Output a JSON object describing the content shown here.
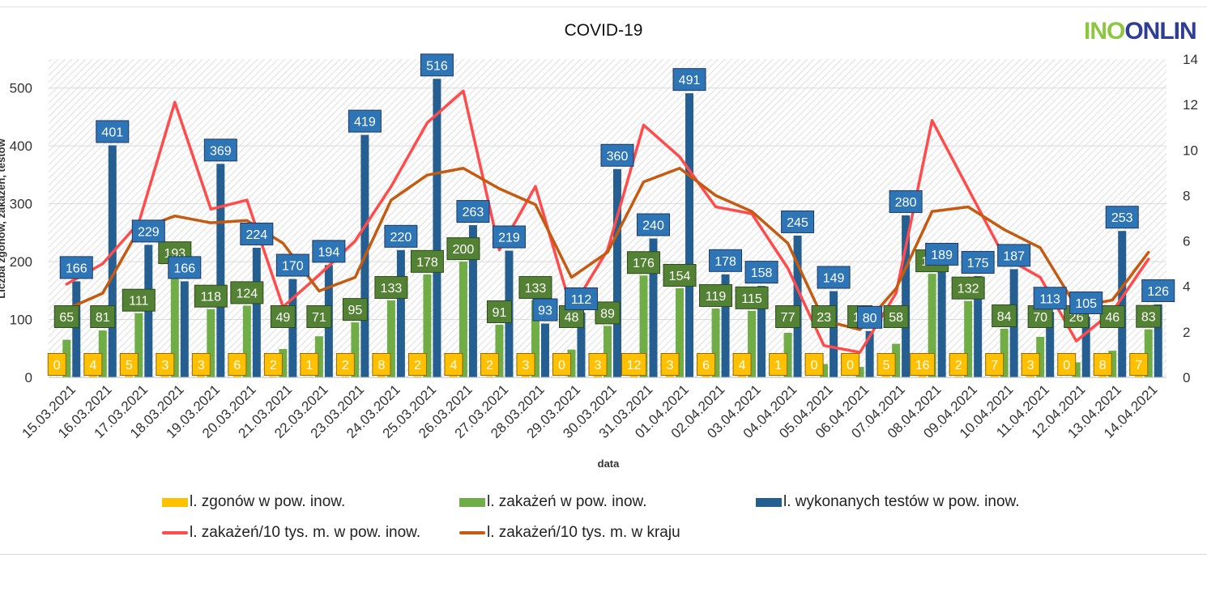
{
  "chart_data": {
    "type": "bar",
    "title": "COVID-19",
    "xlabel": "data",
    "ylabel": "Liczba zgonów, zakażeń, testów",
    "ylim": [
      0,
      550
    ],
    "y2lim": [
      0,
      14
    ],
    "yticks": [
      0,
      100,
      200,
      300,
      400,
      500
    ],
    "y2ticks": [
      0,
      2,
      4,
      6,
      8,
      10,
      12,
      14
    ],
    "legend_position": "bottom",
    "categories": [
      "15.03.2021",
      "16.03.2021",
      "17.03.2021",
      "18.03.2021",
      "19.03.2021",
      "20.03.2021",
      "21.03.2021",
      "22.03.2021",
      "23.03.2021",
      "24.03.2021",
      "25.03.2021",
      "26.03.2021",
      "27.03.2021",
      "28.03.2021",
      "29.03.2021",
      "30.03.2021",
      "31.03.2021",
      "01.04.2021",
      "02.04.2021",
      "03.04.2021",
      "04.04.2021",
      "05.04.2021",
      "06.04.2021",
      "07.04.2021",
      "08.04.2021",
      "09.04.2021",
      "10.04.2021",
      "11.04.2021",
      "12.04.2021",
      "13.04.2021",
      "14.04.2021"
    ],
    "series": [
      {
        "name": "l. zgonów w pow. inow.",
        "type": "bar",
        "axis": "left",
        "color": "#ffc000",
        "values": [
          0,
          4,
          5,
          3,
          3,
          6,
          2,
          1,
          2,
          8,
          2,
          4,
          2,
          3,
          0,
          3,
          12,
          3,
          6,
          4,
          1,
          0,
          0,
          5,
          16,
          2,
          7,
          3,
          0,
          8,
          7
        ]
      },
      {
        "name": "l. zakażeń w pow. inow.",
        "type": "bar",
        "axis": "left",
        "color": "#70ad47",
        "values": [
          65,
          81,
          111,
          193,
          118,
          124,
          49,
          71,
          95,
          133,
          178,
          200,
          91,
          133,
          48,
          89,
          176,
          154,
          119,
          115,
          77,
          23,
          18,
          58,
          179,
          132,
          84,
          70,
          26,
          46,
          83
        ]
      },
      {
        "name": "l. wykonanych testów w pow. inow.",
        "type": "bar",
        "axis": "left",
        "color": "#255e91",
        "values": [
          166,
          401,
          229,
          166,
          369,
          224,
          170,
          194,
          419,
          220,
          516,
          263,
          219,
          93,
          112,
          360,
          240,
          491,
          178,
          158,
          245,
          149,
          80,
          280,
          189,
          175,
          187,
          113,
          105,
          253,
          126
        ]
      },
      {
        "name": "l. zakażeń/10 tys. m. w pow. inow.",
        "type": "line",
        "axis": "right",
        "color": "#ff4b4b",
        "values": [
          4.1,
          5.0,
          6.8,
          12.1,
          7.4,
          7.8,
          3.1,
          4.5,
          6.0,
          8.4,
          11.2,
          12.6,
          5.6,
          8.4,
          3.0,
          5.6,
          11.1,
          9.7,
          7.5,
          7.2,
          4.8,
          1.4,
          1.1,
          3.7,
          11.3,
          8.3,
          5.3,
          4.4,
          1.6,
          2.9,
          5.2
        ]
      },
      {
        "name": "l. zakażeń/10 tys. m. w kraju",
        "type": "line",
        "axis": "right",
        "color": "#c55a11",
        "values": [
          3.0,
          3.7,
          6.5,
          7.1,
          6.8,
          6.9,
          5.9,
          3.8,
          4.4,
          7.8,
          8.9,
          9.2,
          8.3,
          7.6,
          4.4,
          5.5,
          8.6,
          9.2,
          8.0,
          7.3,
          5.9,
          2.5,
          2.1,
          3.9,
          7.3,
          7.5,
          6.5,
          5.7,
          3.1,
          3.4,
          5.5
        ]
      }
    ]
  },
  "header": {
    "title": "COVID-19",
    "logo_part1": "INO",
    "logo_part2": "ONLIN"
  },
  "legend": {
    "item1": "l. zgonów w pow. inow.",
    "item2": "l. zakażeń w pow. inow.",
    "item3": "l. wykonanych testów w pow. inow.",
    "item4": "l. zakażeń/10 tys. m. w pow. inow.",
    "item5": "l. zakażeń/10 tys. m. w kraju"
  }
}
